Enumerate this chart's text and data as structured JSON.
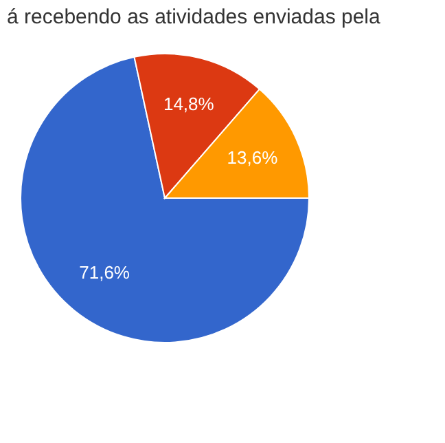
{
  "chart_data": {
    "type": "pie",
    "title": "á recebendo as atividades enviadas pela",
    "categories": [
      null,
      null,
      null
    ],
    "values": [
      71.6,
      14.8,
      13.6
    ],
    "colors": [
      "#3366cc",
      "#dc3912",
      "#ff9900"
    ],
    "value_labels": [
      "71,6%",
      "14,8%",
      "13,6%"
    ]
  }
}
